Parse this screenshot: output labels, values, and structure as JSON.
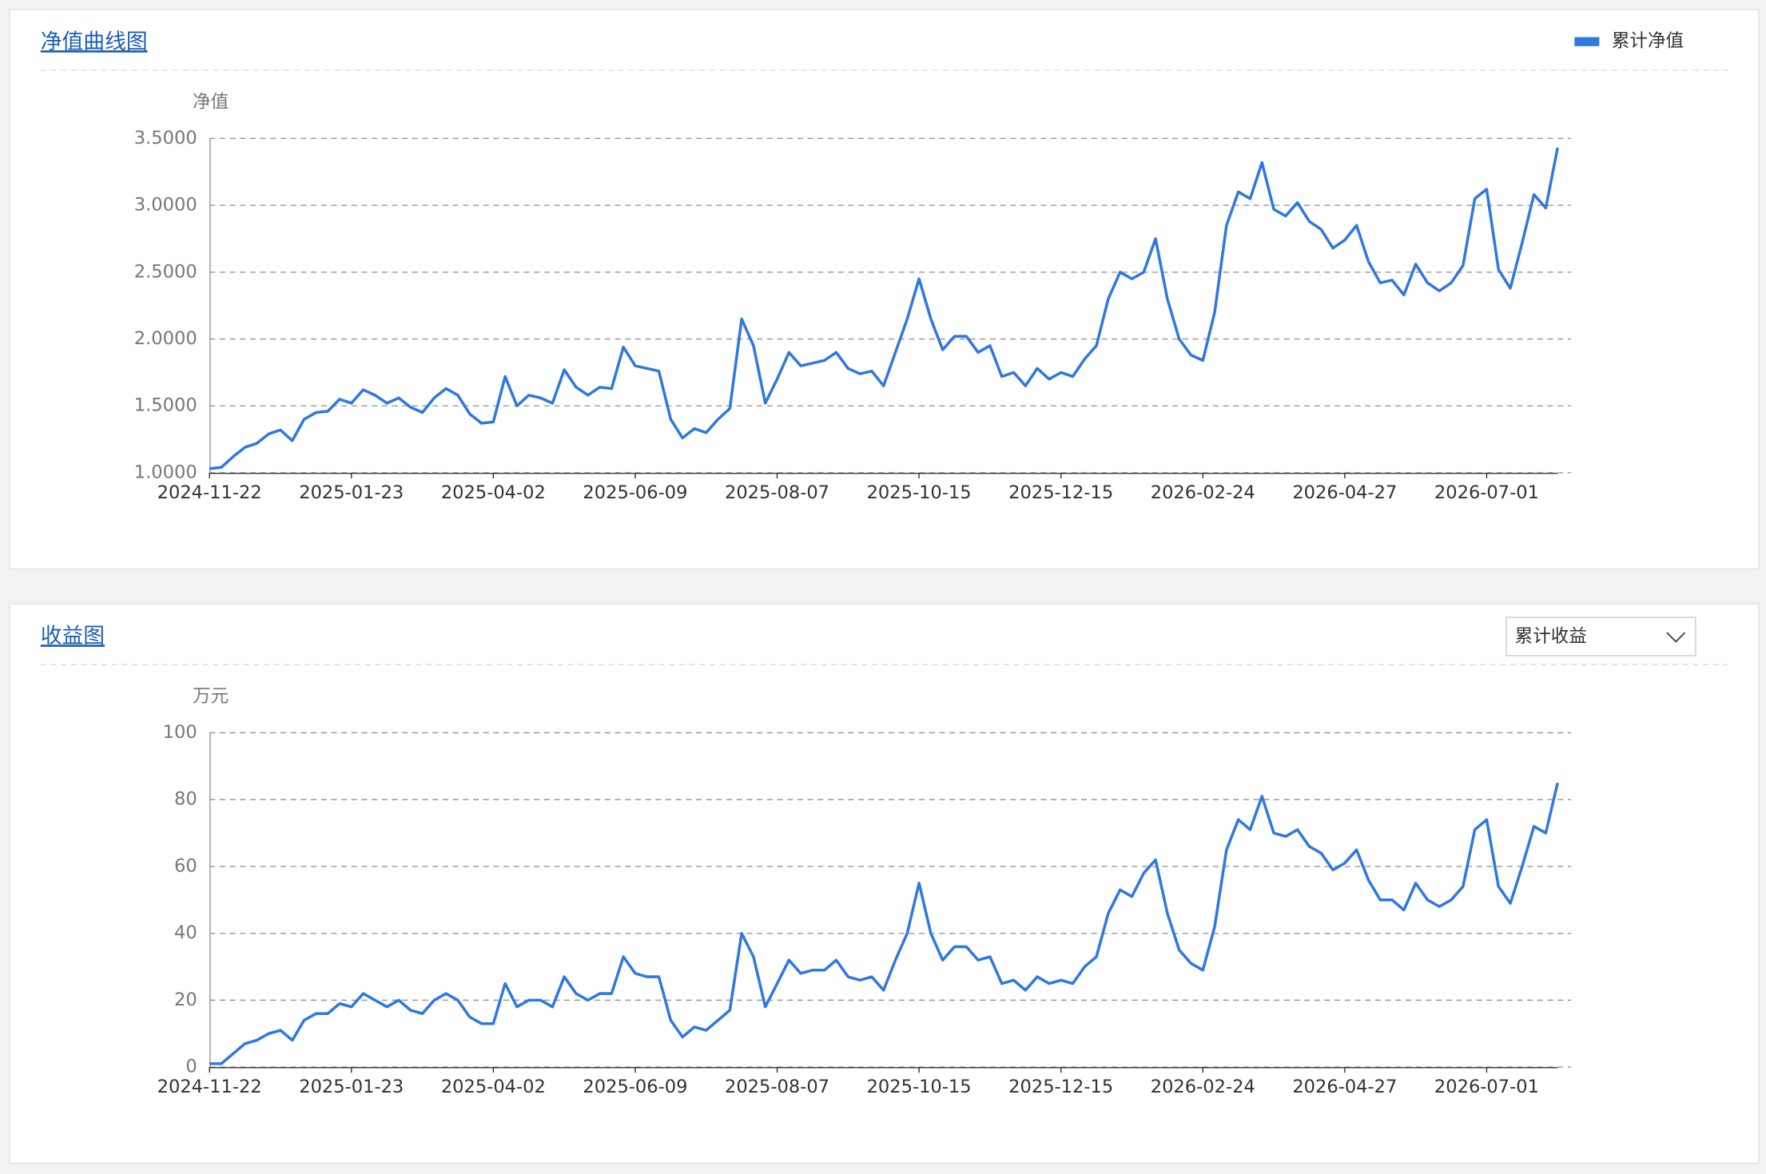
{
  "chart_data": [
    {
      "type": "line",
      "title": "净值曲线图",
      "y_label": "净值",
      "legend": "top-right",
      "grid": true,
      "ylim": [
        1,
        3.5
      ],
      "yticks": [
        {
          "value": 1,
          "label": "1.0000"
        },
        {
          "value": 1.5,
          "label": "1.5000"
        },
        {
          "value": 2,
          "label": "2.0000"
        },
        {
          "value": 2.5,
          "label": "2.5000"
        },
        {
          "value": 3,
          "label": "3.0000"
        },
        {
          "value": 3.5,
          "label": "3.5000"
        }
      ],
      "categories": [
        "2024-11-22",
        null,
        null,
        null,
        null,
        null,
        null,
        null,
        null,
        null,
        null,
        null,
        "2025-01-23",
        null,
        null,
        null,
        null,
        null,
        null,
        null,
        null,
        null,
        null,
        null,
        "2025-04-02",
        null,
        null,
        null,
        null,
        null,
        null,
        null,
        null,
        null,
        null,
        null,
        "2025-06-09",
        null,
        null,
        null,
        null,
        null,
        null,
        null,
        null,
        null,
        null,
        null,
        "2025-08-07",
        null,
        null,
        null,
        null,
        null,
        null,
        null,
        null,
        null,
        null,
        null,
        "2025-10-15",
        null,
        null,
        null,
        null,
        null,
        null,
        null,
        null,
        null,
        null,
        null,
        "2025-12-15",
        null,
        null,
        null,
        null,
        null,
        null,
        null,
        null,
        null,
        null,
        null,
        "2026-02-24",
        null,
        null,
        null,
        null,
        null,
        null,
        null,
        null,
        null,
        null,
        null,
        "2026-04-27",
        null,
        null,
        null,
        null,
        null,
        null,
        null,
        null,
        null,
        null,
        null,
        "2026-07-01",
        null,
        null,
        null,
        null,
        null,
        null
      ],
      "series": [
        {
          "name": "累计净值",
          "color": "#2f78e0",
          "values": [
            1.03,
            1.04,
            1.12,
            1.19,
            1.22,
            1.29,
            1.32,
            1.24,
            1.4,
            1.45,
            1.46,
            1.55,
            1.52,
            1.62,
            1.58,
            1.52,
            1.56,
            1.49,
            1.45,
            1.56,
            1.63,
            1.58,
            1.44,
            1.37,
            1.38,
            1.72,
            1.5,
            1.58,
            1.56,
            1.52,
            1.77,
            1.64,
            1.58,
            1.64,
            1.63,
            1.94,
            1.8,
            1.78,
            1.76,
            1.4,
            1.26,
            1.33,
            1.3,
            1.4,
            1.48,
            2.15,
            1.95,
            1.52,
            1.7,
            1.9,
            1.8,
            1.82,
            1.84,
            1.9,
            1.78,
            1.74,
            1.76,
            1.65,
            1.9,
            2.15,
            2.45,
            2.15,
            1.92,
            2.02,
            2.02,
            1.9,
            1.95,
            1.72,
            1.75,
            1.65,
            1.78,
            1.7,
            1.75,
            1.72,
            1.85,
            1.95,
            2.3,
            2.5,
            2.45,
            2.5,
            2.75,
            2.3,
            2.0,
            1.88,
            1.84,
            2.2,
            2.85,
            3.1,
            3.05,
            3.32,
            2.97,
            2.92,
            3.02,
            2.88,
            2.82,
            2.68,
            2.74,
            2.85,
            2.58,
            2.42,
            2.44,
            2.33,
            2.56,
            2.42,
            2.36,
            2.42,
            2.55,
            3.05,
            3.12,
            2.52,
            2.38,
            2.72,
            3.08,
            2.98,
            3.43
          ]
        }
      ]
    },
    {
      "type": "line",
      "title": "收益图",
      "y_label": "万元",
      "grid": true,
      "ylim": [
        0,
        100
      ],
      "yticks": [
        0,
        20,
        40,
        60,
        80,
        100
      ],
      "categories": [
        "2024-11-22",
        null,
        null,
        null,
        null,
        null,
        null,
        null,
        null,
        null,
        null,
        null,
        "2025-01-23",
        null,
        null,
        null,
        null,
        null,
        null,
        null,
        null,
        null,
        null,
        null,
        "2025-04-02",
        null,
        null,
        null,
        null,
        null,
        null,
        null,
        null,
        null,
        null,
        null,
        "2025-06-09",
        null,
        null,
        null,
        null,
        null,
        null,
        null,
        null,
        null,
        null,
        null,
        "2025-08-07",
        null,
        null,
        null,
        null,
        null,
        null,
        null,
        null,
        null,
        null,
        null,
        "2025-10-15",
        null,
        null,
        null,
        null,
        null,
        null,
        null,
        null,
        null,
        null,
        null,
        "2025-12-15",
        null,
        null,
        null,
        null,
        null,
        null,
        null,
        null,
        null,
        null,
        null,
        "2026-02-24",
        null,
        null,
        null,
        null,
        null,
        null,
        null,
        null,
        null,
        null,
        null,
        "2026-04-27",
        null,
        null,
        null,
        null,
        null,
        null,
        null,
        null,
        null,
        null,
        null,
        "2026-07-01",
        null,
        null,
        null,
        null,
        null,
        null
      ],
      "series": [
        {
          "name": "累计收益",
          "color": "#2f78e0",
          "values": [
            1,
            1,
            4,
            7,
            8,
            10,
            11,
            8,
            14,
            16,
            16,
            19,
            18,
            22,
            20,
            18,
            20,
            17,
            16,
            20,
            22,
            20,
            15,
            13,
            13,
            25,
            18,
            20,
            20,
            18,
            27,
            22,
            20,
            22,
            22,
            33,
            28,
            27,
            27,
            14,
            9,
            12,
            11,
            14,
            17,
            40,
            33,
            18,
            25,
            32,
            28,
            29,
            29,
            32,
            27,
            26,
            27,
            23,
            32,
            40,
            55,
            40,
            32,
            36,
            36,
            32,
            33,
            25,
            26,
            23,
            27,
            25,
            26,
            25,
            30,
            33,
            46,
            53,
            51,
            58,
            62,
            46,
            35,
            31,
            29,
            42,
            65,
            74,
            71,
            81,
            70,
            69,
            71,
            66,
            64,
            59,
            61,
            65,
            56,
            50,
            50,
            47,
            55,
            50,
            48,
            50,
            54,
            71,
            74,
            54,
            49,
            60,
            72,
            70,
            85
          ]
        }
      ]
    }
  ]
}
